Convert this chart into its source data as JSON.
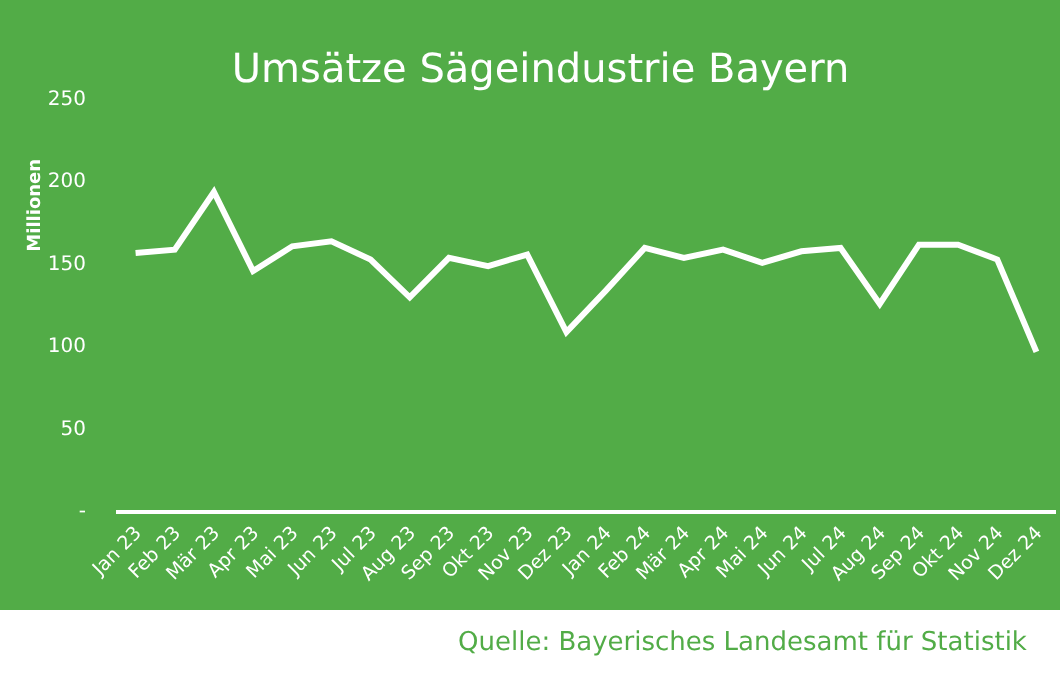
{
  "chart_data": {
    "type": "line",
    "title": "Umsätze Sägeindustrie Bayern",
    "ylabel": "Millionen",
    "categories": [
      "Jan 23",
      "Feb 23",
      "Mär 23",
      "Apr 23",
      "Mai 23",
      "Jun 23",
      "Jul 23",
      "Aug 23",
      "Sep 23",
      "Okt 23",
      "Nov 23",
      "Dez 23",
      "Jan 24",
      "Feb 24",
      "Mär 24",
      "Apr 24",
      "Mai 24",
      "Jun 24",
      "Jul 24",
      "Aug 24",
      "Sep 24",
      "Okt 24",
      "Nov 24",
      "Dez 24"
    ],
    "series": [
      {
        "color": "#ffffff",
        "values": [
          156,
          158,
          193,
          145,
          160,
          163,
          152,
          129,
          153,
          148,
          155,
          108,
          133,
          159,
          153,
          158,
          150,
          157,
          159,
          125,
          161,
          161,
          152,
          96
        ]
      }
    ],
    "ylim": [
      0,
      250
    ],
    "yticks": [
      {
        "value": 0,
        "label": "-"
      },
      50,
      100,
      150,
      200,
      250
    ],
    "marker": "none",
    "line_style": "solid",
    "annotations": [
      "Quelle: Bayerisches Landesamt für Statistik"
    ]
  }
}
